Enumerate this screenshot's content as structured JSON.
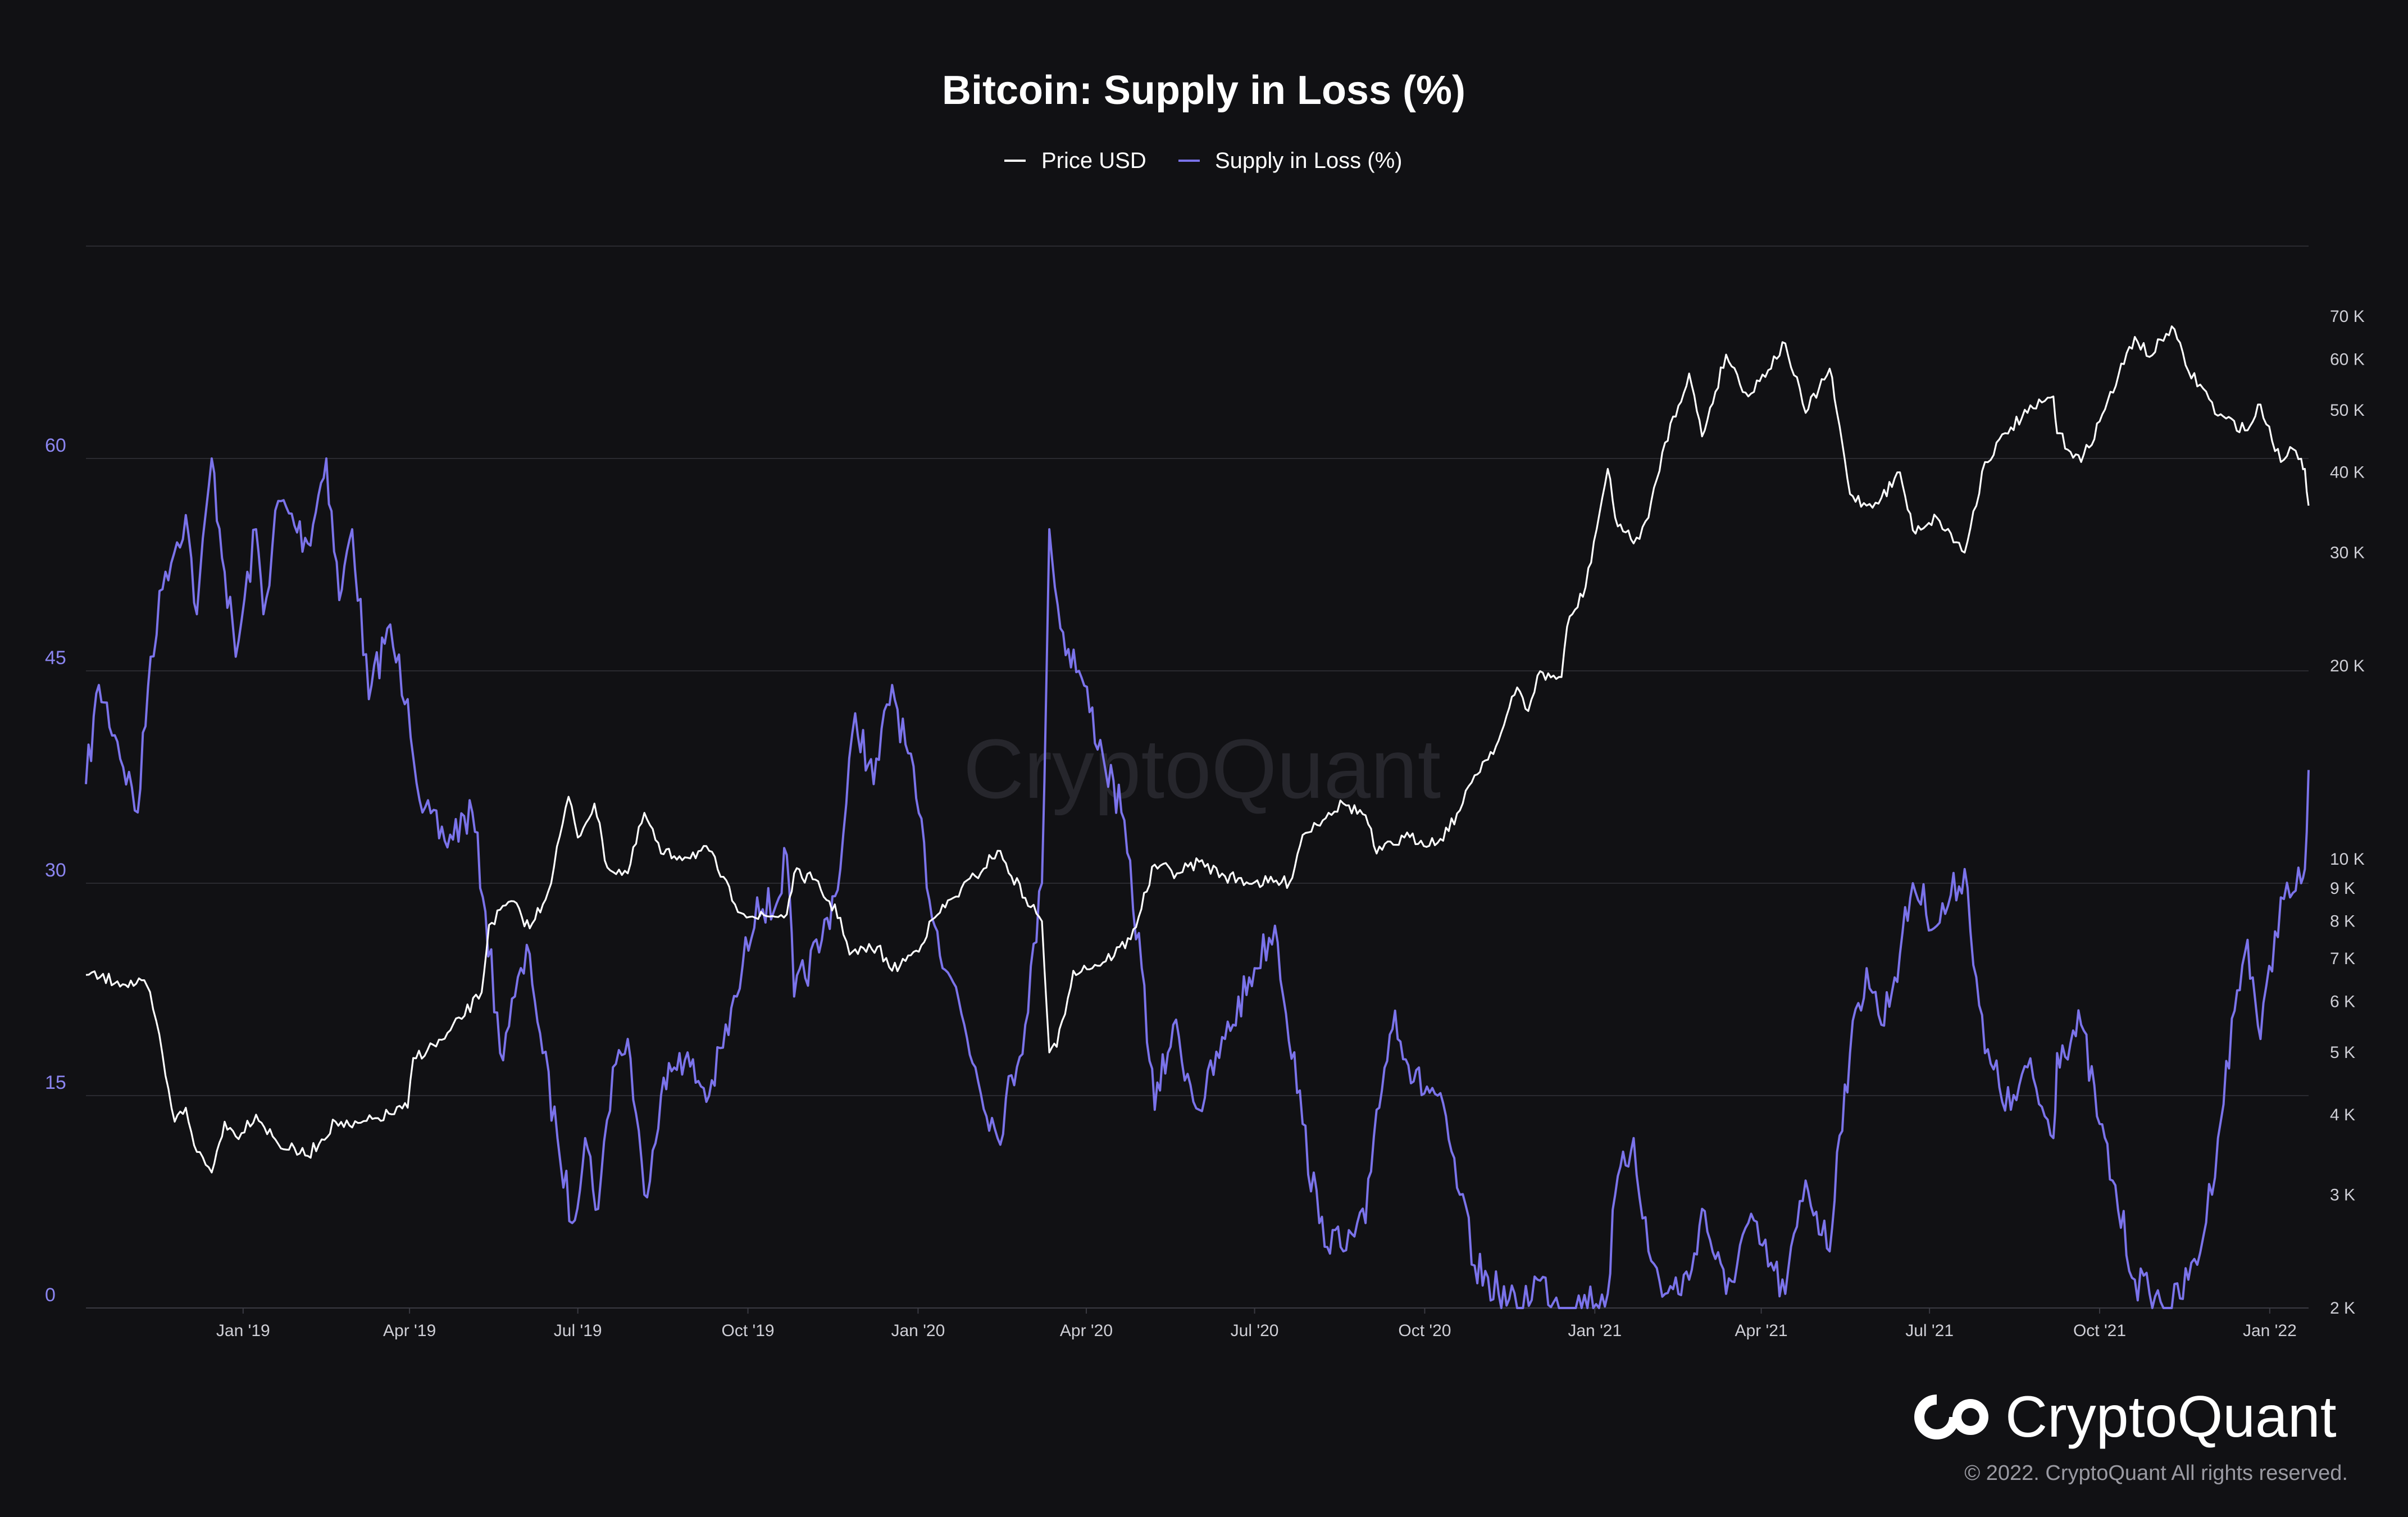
{
  "chart_data": {
    "type": "line",
    "title": "Bitcoin: Supply in Loss (%)",
    "legend": {
      "placement": "top-center",
      "items": [
        "Price USD",
        "Supply in Loss (%)"
      ]
    },
    "x_labels": [
      "Jan '19",
      "Apr '19",
      "Jul '19",
      "Oct '19",
      "Jan '20",
      "Apr '20",
      "Jul '20",
      "Oct '20",
      "Jan '21",
      "Apr '21",
      "Jul '21",
      "Oct '21",
      "Jan '22"
    ],
    "x_range": [
      "2018-10-08",
      "2022-01-22"
    ],
    "left_axis": {
      "ticks": [
        0,
        15,
        30,
        45,
        60
      ],
      "ylim": [
        0,
        75
      ],
      "color": "#8b85f0"
    },
    "right_axis": {
      "scale": "log",
      "ticks": [
        2000,
        3000,
        4000,
        5000,
        6000,
        7000,
        8000,
        9000,
        10000,
        20000,
        30000,
        40000,
        50000,
        60000,
        70000
      ],
      "tick_labels": [
        "2 K",
        "3 K",
        "4 K",
        "5 K",
        "6 K",
        "7 K",
        "8 K",
        "9 K",
        "10 K",
        "20 K",
        "30 K",
        "40 K",
        "50 K",
        "60 K",
        "70 K"
      ],
      "ylim": [
        2000,
        90000
      ]
    },
    "grid": true,
    "series": [
      {
        "name": "Price USD",
        "axis": "right",
        "color": "#ffffff",
        "points": [
          [
            "2018-10-08",
            6600
          ],
          [
            "2018-10-25",
            6450
          ],
          [
            "2018-11-10",
            6350
          ],
          [
            "2018-11-15",
            5600
          ],
          [
            "2018-11-20",
            4600
          ],
          [
            "2018-11-25",
            3900
          ],
          [
            "2018-12-01",
            4100
          ],
          [
            "2018-12-07",
            3500
          ],
          [
            "2018-12-15",
            3250
          ],
          [
            "2018-12-22",
            3900
          ],
          [
            "2018-12-28",
            3700
          ],
          [
            "2019-01-08",
            4000
          ],
          [
            "2019-01-20",
            3600
          ],
          [
            "2019-02-05",
            3450
          ],
          [
            "2019-02-20",
            3900
          ],
          [
            "2019-03-01",
            3820
          ],
          [
            "2019-03-15",
            3950
          ],
          [
            "2019-03-31",
            4100
          ],
          [
            "2019-04-03",
            4900
          ],
          [
            "2019-04-20",
            5250
          ],
          [
            "2019-05-10",
            6200
          ],
          [
            "2019-05-14",
            7900
          ],
          [
            "2019-05-26",
            8600
          ],
          [
            "2019-06-05",
            7800
          ],
          [
            "2019-06-15",
            8900
          ],
          [
            "2019-06-26",
            12500
          ],
          [
            "2019-07-01",
            10800
          ],
          [
            "2019-07-10",
            12200
          ],
          [
            "2019-07-17",
            9700
          ],
          [
            "2019-07-28",
            9500
          ],
          [
            "2019-08-06",
            11800
          ],
          [
            "2019-08-15",
            10200
          ],
          [
            "2019-08-25",
            10100
          ],
          [
            "2019-09-10",
            10300
          ],
          [
            "2019-09-24",
            8500
          ],
          [
            "2019-10-05",
            8100
          ],
          [
            "2019-10-22",
            8200
          ],
          [
            "2019-10-26",
            9500
          ],
          [
            "2019-11-05",
            9300
          ],
          [
            "2019-11-20",
            8100
          ],
          [
            "2019-11-25",
            7100
          ],
          [
            "2019-12-10",
            7300
          ],
          [
            "2019-12-18",
            6700
          ],
          [
            "2019-12-31",
            7200
          ],
          [
            "2020-01-10",
            8100
          ],
          [
            "2020-01-20",
            8700
          ],
          [
            "2020-02-01",
            9400
          ],
          [
            "2020-02-13",
            10300
          ],
          [
            "2020-02-28",
            8700
          ],
          [
            "2020-03-08",
            8000
          ],
          [
            "2020-03-12",
            5000
          ],
          [
            "2020-03-16",
            5100
          ],
          [
            "2020-03-25",
            6700
          ],
          [
            "2020-04-10",
            6900
          ],
          [
            "2020-04-25",
            7500
          ],
          [
            "2020-05-08",
            9800
          ],
          [
            "2020-05-20",
            9500
          ],
          [
            "2020-06-01",
            9900
          ],
          [
            "2020-06-15",
            9400
          ],
          [
            "2020-07-01",
            9200
          ],
          [
            "2020-07-20",
            9200
          ],
          [
            "2020-07-27",
            10900
          ],
          [
            "2020-08-10",
            11800
          ],
          [
            "2020-08-18",
            12200
          ],
          [
            "2020-08-30",
            11700
          ],
          [
            "2020-09-05",
            10200
          ],
          [
            "2020-09-20",
            10800
          ],
          [
            "2020-10-08",
            10600
          ],
          [
            "2020-10-20",
            11900
          ],
          [
            "2020-10-28",
            13500
          ],
          [
            "2020-11-10",
            15300
          ],
          [
            "2020-11-20",
            18500
          ],
          [
            "2020-11-26",
            17000
          ],
          [
            "2020-12-01",
            19300
          ],
          [
            "2020-12-14",
            19200
          ],
          [
            "2020-12-17",
            23000
          ],
          [
            "2020-12-27",
            26500
          ],
          [
            "2021-01-08",
            40500
          ],
          [
            "2021-01-12",
            34000
          ],
          [
            "2021-01-22",
            31000
          ],
          [
            "2021-01-30",
            34000
          ],
          [
            "2021-02-08",
            44500
          ],
          [
            "2021-02-21",
            57000
          ],
          [
            "2021-02-28",
            45500
          ],
          [
            "2021-03-13",
            61000
          ],
          [
            "2021-03-25",
            52500
          ],
          [
            "2021-04-14",
            63500
          ],
          [
            "2021-04-25",
            49500
          ],
          [
            "2021-05-08",
            58000
          ],
          [
            "2021-05-12",
            49500
          ],
          [
            "2021-05-19",
            37000
          ],
          [
            "2021-05-28",
            35500
          ],
          [
            "2021-06-05",
            36500
          ],
          [
            "2021-06-15",
            40000
          ],
          [
            "2021-06-22",
            32500
          ],
          [
            "2021-07-05",
            34000
          ],
          [
            "2021-07-20",
            30000
          ],
          [
            "2021-07-31",
            41500
          ],
          [
            "2021-08-14",
            47000
          ],
          [
            "2021-08-23",
            49500
          ],
          [
            "2021-09-06",
            52500
          ],
          [
            "2021-09-08",
            46000
          ],
          [
            "2021-09-21",
            41500
          ],
          [
            "2021-10-01",
            48000
          ],
          [
            "2021-10-20",
            65000
          ],
          [
            "2021-10-28",
            60500
          ],
          [
            "2021-11-09",
            67500
          ],
          [
            "2021-11-18",
            57500
          ],
          [
            "2021-11-26",
            54000
          ],
          [
            "2021-12-04",
            49000
          ],
          [
            "2021-12-20",
            46500
          ],
          [
            "2021-12-27",
            51000
          ],
          [
            "2022-01-07",
            41500
          ],
          [
            "2022-01-12",
            43800
          ],
          [
            "2022-01-18",
            42000
          ],
          [
            "2022-01-20",
            40500
          ],
          [
            "2022-01-22",
            35500
          ]
        ]
      },
      {
        "name": "Supply in Loss (%)",
        "axis": "left",
        "color": "#7b73ea",
        "points": [
          [
            "2018-10-08",
            37
          ],
          [
            "2018-10-15",
            44
          ],
          [
            "2018-10-25",
            40
          ],
          [
            "2018-11-05",
            35
          ],
          [
            "2018-11-12",
            46
          ],
          [
            "2018-11-20",
            52
          ],
          [
            "2018-12-01",
            56
          ],
          [
            "2018-12-07",
            49
          ],
          [
            "2018-12-15",
            60
          ],
          [
            "2018-12-22",
            52
          ],
          [
            "2018-12-28",
            46
          ],
          [
            "2019-01-08",
            55
          ],
          [
            "2019-01-12",
            49
          ],
          [
            "2019-01-20",
            57
          ],
          [
            "2019-02-05",
            54
          ],
          [
            "2019-02-15",
            60
          ],
          [
            "2019-02-22",
            50
          ],
          [
            "2019-03-01",
            55
          ],
          [
            "2019-03-10",
            43
          ],
          [
            "2019-03-20",
            48
          ],
          [
            "2019-03-31",
            43
          ],
          [
            "2019-04-08",
            35
          ],
          [
            "2019-04-20",
            33
          ],
          [
            "2019-05-05",
            35
          ],
          [
            "2019-05-12",
            28
          ],
          [
            "2019-05-20",
            18
          ],
          [
            "2019-05-28",
            22
          ],
          [
            "2019-06-05",
            25
          ],
          [
            "2019-06-12",
            18
          ],
          [
            "2019-06-20",
            12
          ],
          [
            "2019-06-28",
            6
          ],
          [
            "2019-07-05",
            12
          ],
          [
            "2019-07-12",
            7
          ],
          [
            "2019-07-20",
            17
          ],
          [
            "2019-07-28",
            19
          ],
          [
            "2019-08-06",
            8
          ],
          [
            "2019-08-15",
            15
          ],
          [
            "2019-08-25",
            18
          ],
          [
            "2019-09-10",
            15
          ],
          [
            "2019-09-25",
            22
          ],
          [
            "2019-10-06",
            29
          ],
          [
            "2019-10-15",
            28
          ],
          [
            "2019-10-22",
            32
          ],
          [
            "2019-10-26",
            22
          ],
          [
            "2019-11-10",
            26
          ],
          [
            "2019-11-20",
            31
          ],
          [
            "2019-11-28",
            42
          ],
          [
            "2019-12-08",
            37
          ],
          [
            "2019-12-18",
            44
          ],
          [
            "2019-12-31",
            36
          ],
          [
            "2020-01-10",
            27
          ],
          [
            "2020-01-20",
            23
          ],
          [
            "2020-02-01",
            17
          ],
          [
            "2020-02-13",
            12
          ],
          [
            "2020-02-28",
            20
          ],
          [
            "2020-03-08",
            30
          ],
          [
            "2020-03-12",
            55
          ],
          [
            "2020-03-18",
            48
          ],
          [
            "2020-03-28",
            45
          ],
          [
            "2020-04-10",
            39
          ],
          [
            "2020-04-20",
            35
          ],
          [
            "2020-05-01",
            24
          ],
          [
            "2020-05-08",
            14
          ],
          [
            "2020-05-18",
            20
          ],
          [
            "2020-06-01",
            14
          ],
          [
            "2020-06-15",
            19
          ],
          [
            "2020-07-01",
            24
          ],
          [
            "2020-07-12",
            27
          ],
          [
            "2020-07-27",
            13
          ],
          [
            "2020-08-05",
            6
          ],
          [
            "2020-08-18",
            4
          ],
          [
            "2020-08-30",
            6
          ],
          [
            "2020-09-05",
            14
          ],
          [
            "2020-09-15",
            21
          ],
          [
            "2020-09-25",
            16
          ],
          [
            "2020-10-08",
            15
          ],
          [
            "2020-10-20",
            8
          ],
          [
            "2020-10-28",
            3
          ],
          [
            "2020-11-10",
            1
          ],
          [
            "2020-11-20",
            0
          ],
          [
            "2020-12-01",
            2
          ],
          [
            "2020-12-17",
            0
          ],
          [
            "2021-01-08",
            1
          ],
          [
            "2021-01-12",
            8
          ],
          [
            "2021-01-22",
            12
          ],
          [
            "2021-01-30",
            4
          ],
          [
            "2021-02-08",
            1
          ],
          [
            "2021-02-21",
            2
          ],
          [
            "2021-02-28",
            7
          ],
          [
            "2021-03-13",
            1
          ],
          [
            "2021-03-25",
            6
          ],
          [
            "2021-04-14",
            1
          ],
          [
            "2021-04-25",
            9
          ],
          [
            "2021-05-08",
            4
          ],
          [
            "2021-05-12",
            11
          ],
          [
            "2021-05-19",
            18
          ],
          [
            "2021-05-28",
            24
          ],
          [
            "2021-06-05",
            20
          ],
          [
            "2021-06-15",
            25
          ],
          [
            "2021-06-22",
            30
          ],
          [
            "2021-07-05",
            27
          ],
          [
            "2021-07-20",
            31
          ],
          [
            "2021-07-31",
            18
          ],
          [
            "2021-08-14",
            14
          ],
          [
            "2021-08-23",
            17
          ],
          [
            "2021-09-06",
            12
          ],
          [
            "2021-09-08",
            18
          ],
          [
            "2021-09-21",
            20
          ],
          [
            "2021-10-01",
            13
          ],
          [
            "2021-10-08",
            9
          ],
          [
            "2021-10-20",
            2
          ],
          [
            "2021-10-28",
            1
          ],
          [
            "2021-11-09",
            0
          ],
          [
            "2021-11-18",
            2
          ],
          [
            "2021-11-26",
            5
          ],
          [
            "2021-12-04",
            12
          ],
          [
            "2021-12-13",
            21
          ],
          [
            "2021-12-20",
            26
          ],
          [
            "2021-12-27",
            19
          ],
          [
            "2022-01-07",
            29
          ],
          [
            "2022-01-12",
            29
          ],
          [
            "2022-01-18",
            30
          ],
          [
            "2022-01-20",
            31
          ],
          [
            "2022-01-22",
            38
          ]
        ]
      }
    ]
  },
  "watermark": "CryptoQuant",
  "brand": {
    "name": "CryptoQuant",
    "copyright": "© 2022. CryptoQuant All rights reserved."
  },
  "colors": {
    "background": "#111114",
    "grid": "#2a2a30",
    "price": "#ffffff",
    "supply": "#7b73ea"
  }
}
